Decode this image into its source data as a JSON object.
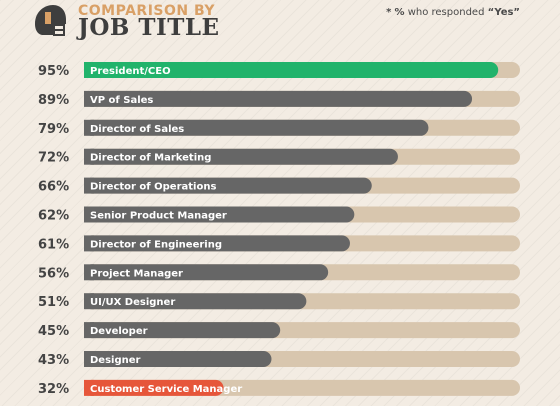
{
  "header": {
    "title_small": "COMPARISON BY",
    "title_big": "JOB TITLE",
    "note_star": "*",
    "note_pct": "%",
    "note_text": "who responded",
    "note_yes": "“Yes”"
  },
  "colors": {
    "track": "#d8c6ae",
    "bar": "#666666",
    "highlight_top": "#21b36b",
    "highlight_bottom": "#e6563a",
    "label_text": "#ffffff",
    "pct_text": "#444444"
  },
  "chart_data": {
    "type": "bar",
    "orientation": "horizontal",
    "categories": [
      "President/CEO",
      "VP of Sales",
      "Director of Sales",
      "Director of Marketing",
      "Director of Operations",
      "Senior Product Manager",
      "Director of Engineering",
      "Project Manager",
      "UI/UX Designer",
      "Developer",
      "Designer",
      "Customer Service Manager"
    ],
    "value_labels": [
      "95%",
      "89%",
      "79%",
      "72%",
      "66%",
      "62%",
      "61%",
      "56%",
      "51%",
      "45%",
      "43%",
      "32%"
    ],
    "values": [
      95,
      89,
      79,
      72,
      66,
      62,
      61,
      56,
      51,
      45,
      43,
      32
    ],
    "xlim": [
      0,
      100
    ]
  }
}
